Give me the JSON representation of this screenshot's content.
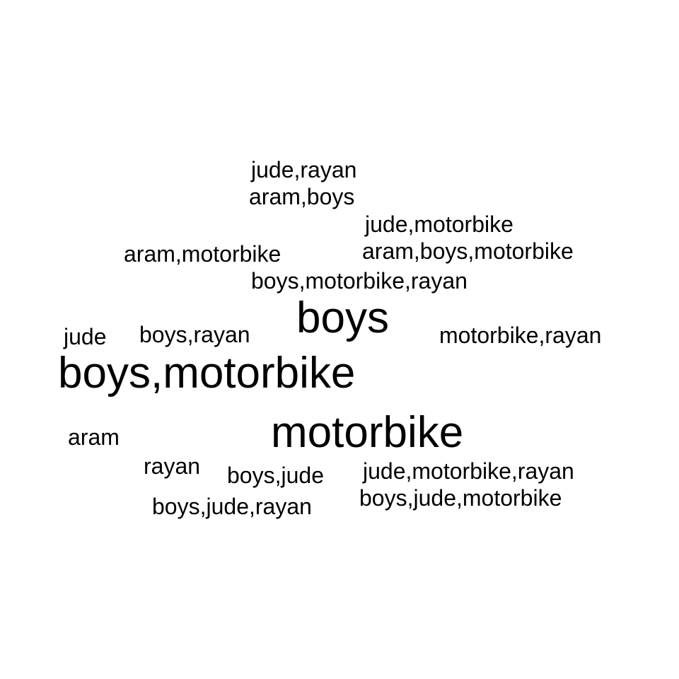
{
  "cloud": {
    "text_color": "#000000",
    "background": "#ffffff",
    "words": [
      {
        "text": "jude,rayan"
      },
      {
        "text": "aram,boys"
      },
      {
        "text": "jude,motorbike"
      },
      {
        "text": "aram,motorbike"
      },
      {
        "text": "aram,boys,motorbike"
      },
      {
        "text": "boys,motorbike,rayan"
      },
      {
        "text": "boys"
      },
      {
        "text": "jude"
      },
      {
        "text": "boys,rayan"
      },
      {
        "text": "motorbike,rayan"
      },
      {
        "text": "boys,motorbike"
      },
      {
        "text": "aram"
      },
      {
        "text": "motorbike"
      },
      {
        "text": "rayan"
      },
      {
        "text": "boys,jude"
      },
      {
        "text": "jude,motorbike,rayan"
      },
      {
        "text": "boys,jude,motorbike"
      },
      {
        "text": "boys,jude,rayan"
      }
    ]
  }
}
